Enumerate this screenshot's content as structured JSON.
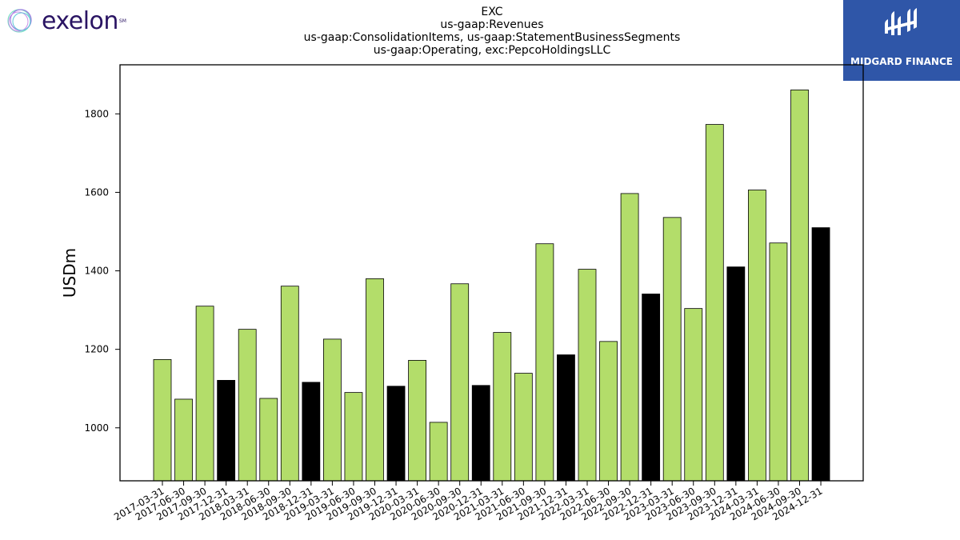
{
  "logos": {
    "left_text": "exelon",
    "left_mark": "SM",
    "right_text": "MIDGARD FINANCE"
  },
  "colors": {
    "bar_default": "#b3dd6a",
    "bar_q4": "#000000",
    "right_logo_bg": "#2f56a8"
  },
  "chart_data": {
    "type": "bar",
    "title_lines": [
      "EXC",
      "us-gaap:Revenues",
      "us-gaap:ConsolidationItems, us-gaap:StatementBusinessSegments",
      "us-gaap:Operating, exc:PepcoHoldingsLLC"
    ],
    "xlabel": "",
    "ylabel": "USDm",
    "ylim": [
      865,
      1925
    ],
    "yticks": [
      1000,
      1200,
      1400,
      1600,
      1800
    ],
    "grid": false,
    "categories": [
      "2017-03-31",
      "2017-06-30",
      "2017-09-30",
      "2017-12-31",
      "2018-03-31",
      "2018-06-30",
      "2018-09-30",
      "2018-12-31",
      "2019-03-31",
      "2019-06-30",
      "2019-09-30",
      "2019-12-31",
      "2020-03-31",
      "2020-06-30",
      "2020-09-30",
      "2020-12-31",
      "2021-03-31",
      "2021-06-30",
      "2021-09-30",
      "2021-12-31",
      "2022-03-31",
      "2022-06-30",
      "2022-09-30",
      "2022-12-31",
      "2023-03-31",
      "2023-06-30",
      "2023-09-30",
      "2023-12-31",
      "2024-03-31",
      "2024-06-30",
      "2024-09-30",
      "2024-12-31"
    ],
    "values": [
      1174,
      1073,
      1310,
      1121,
      1251,
      1075,
      1361,
      1116,
      1226,
      1090,
      1380,
      1106,
      1172,
      1014,
      1367,
      1108,
      1243,
      1139,
      1469,
      1186,
      1404,
      1220,
      1597,
      1341,
      1536,
      1304,
      1773,
      1410,
      1606,
      1471,
      1861,
      1510
    ],
    "highlight": [
      false,
      false,
      false,
      true,
      false,
      false,
      false,
      true,
      false,
      false,
      false,
      true,
      false,
      false,
      false,
      true,
      false,
      false,
      false,
      true,
      false,
      false,
      false,
      true,
      false,
      false,
      false,
      true,
      false,
      false,
      false,
      true
    ]
  }
}
